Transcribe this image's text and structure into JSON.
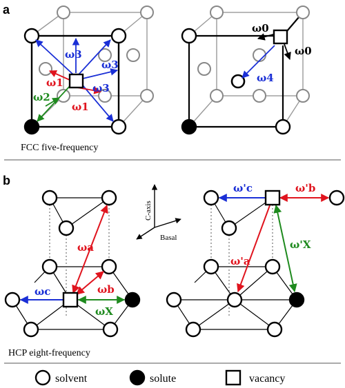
{
  "panels": {
    "a": {
      "letter": "a",
      "caption": "FCC five-frequency",
      "labels": {
        "w3_top": "ω3",
        "w3_right": "ω3",
        "w3_lower": "ω3",
        "w1_upper": "ω1",
        "w1_lower": "ω1",
        "w2": "ω2",
        "w0_top": "ω0",
        "w0_right": "ω0",
        "w4": "ω4"
      }
    },
    "b": {
      "letter": "b",
      "caption": "HCP eight-frequency",
      "axis_c": "C-axis",
      "axis_basal": "Basal",
      "labels": {
        "wa": "ωa",
        "wb": "ωb",
        "wc": "ωc",
        "wx": "ωX",
        "wa_p": "ω'a",
        "wb_p": "ω'b",
        "wc_p": "ω'c",
        "wx_p": "ω'X"
      }
    }
  },
  "legend": {
    "solvent": "solvent",
    "solute": "solute",
    "vacancy": "vacancy"
  },
  "colors": {
    "blue": "#1a2fd6",
    "red": "#e0141e",
    "green": "#1e8a1e",
    "black": "#000000",
    "gray": "#9a9a9a"
  }
}
